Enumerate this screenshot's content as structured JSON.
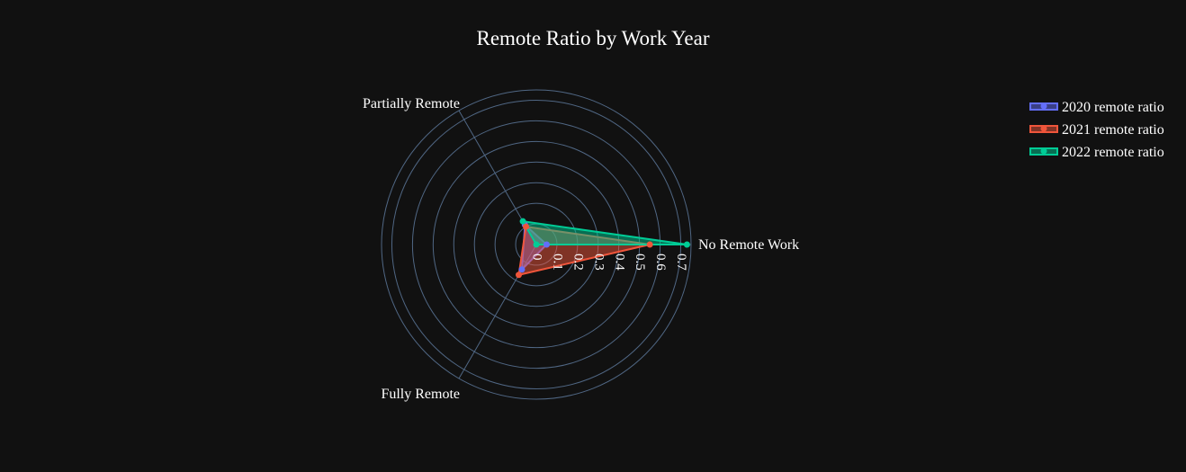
{
  "chart_data": {
    "type": "radar",
    "title": "Remote Ratio by Work Year",
    "theta": [
      "No Remote Work",
      "Partially Remote",
      "Fully Remote"
    ],
    "radial_ticks": [
      "0",
      "0.1",
      "0.2",
      "0.3",
      "0.4",
      "0.5",
      "0.6",
      "0.7"
    ],
    "radial_range": [
      0,
      0.75
    ],
    "grid": true,
    "legend_position": "top-right",
    "series": [
      {
        "name": "2020 remote ratio",
        "values": [
          0.05,
          0.11,
          0.14
        ],
        "color": "#636efa"
      },
      {
        "name": "2021 remote ratio",
        "values": [
          0.55,
          0.1,
          0.17
        ],
        "color": "#ef553b"
      },
      {
        "name": "2022 remote ratio",
        "values": [
          0.73,
          0.13,
          0.0
        ],
        "color": "#00cc96"
      }
    ]
  }
}
